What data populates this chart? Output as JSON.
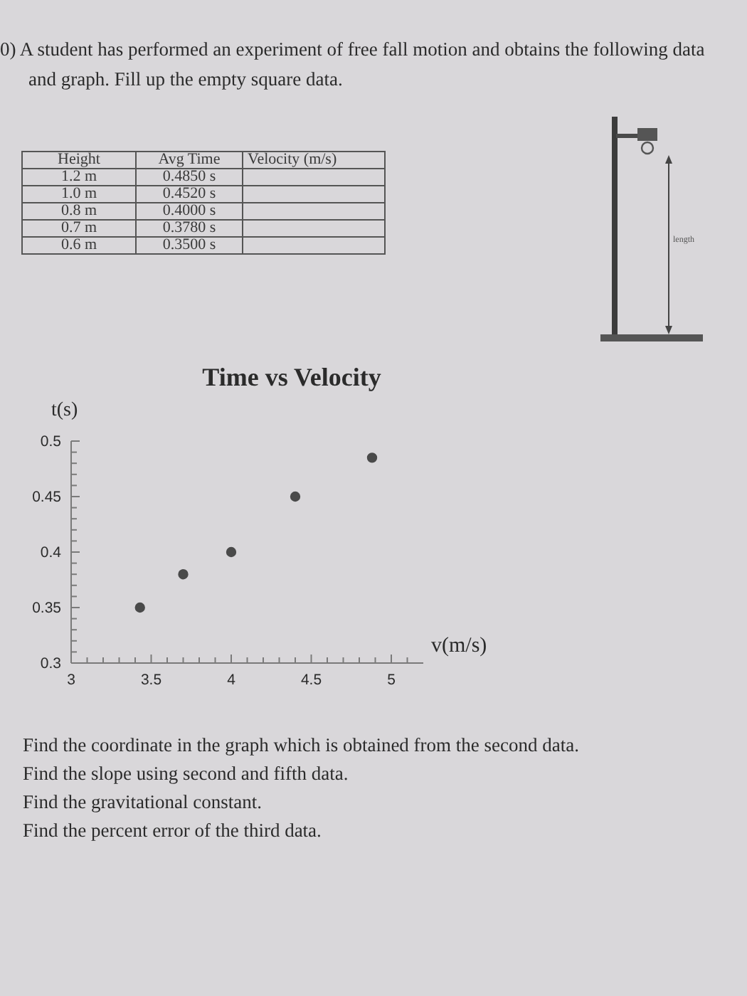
{
  "chart_data": {
    "type": "scatter",
    "title": "Time vs Velocity",
    "xlabel": "v(m/s)",
    "ylabel": "t(s)",
    "x": [
      3.43,
      3.7,
      4,
      4.4,
      4.88
    ],
    "values": [
      0.35,
      0.38,
      0.4,
      0.45,
      0.485
    ],
    "color": "#4a4a4a",
    "marker": "circle",
    "xlim": [
      3,
      5.2
    ],
    "xticks": [
      3,
      {
        "value": 3.1,
        "label": null
      },
      {
        "value": 3.2,
        "label": null
      },
      {
        "value": 3.3,
        "label": null
      },
      {
        "value": 3.4,
        "label": null
      },
      3.5,
      {
        "value": 3.6,
        "label": null
      },
      {
        "value": 3.7,
        "label": null
      },
      {
        "value": 3.8,
        "label": null
      },
      {
        "value": 3.9,
        "label": null
      },
      4,
      {
        "value": 4.1,
        "label": null
      },
      {
        "value": 4.2,
        "label": null
      },
      {
        "value": 4.3,
        "label": null
      },
      {
        "value": 4.4,
        "label": null
      },
      4.5,
      {
        "value": 4.6,
        "label": null
      },
      {
        "value": 4.7,
        "label": null
      },
      {
        "value": 4.8,
        "label": null
      },
      {
        "value": 4.9,
        "label": null
      },
      5,
      {
        "value": 5.1,
        "label": null
      }
    ],
    "ylim": [
      0.3,
      0.5
    ],
    "yticks": [
      0.3,
      {
        "value": 0.31,
        "label": null
      },
      {
        "value": 0.32,
        "label": null
      },
      {
        "value": 0.33,
        "label": null
      },
      {
        "value": 0.34,
        "label": null
      },
      0.35,
      {
        "value": 0.36,
        "label": null
      },
      {
        "value": 0.37,
        "label": null
      },
      {
        "value": 0.38,
        "label": null
      },
      {
        "value": 0.39,
        "label": null
      },
      0.4,
      {
        "value": 0.41,
        "label": null
      },
      {
        "value": 0.42,
        "label": null
      },
      {
        "value": 0.43,
        "label": null
      },
      {
        "value": 0.44,
        "label": null
      },
      0.45,
      {
        "value": 0.46,
        "label": null
      },
      {
        "value": 0.47,
        "label": null
      },
      {
        "value": 0.48,
        "label": null
      },
      {
        "value": 0.49,
        "label": null
      },
      0.5
    ],
    "annotations": [
      "0) A student has performed an experiment of free fall motion and obtains the following data and graph. Fill up the empty square data.",
      "Height",
      "Avg Time",
      "Velocity (m/s)",
      "1.2 m",
      "0.4850 s",
      "1.0 m",
      "0.4520 s",
      "0.8 m",
      "0.4000 s",
      "0.7 m",
      "0.3780 s",
      "0.6 m",
      "0.3500 s",
      "length",
      "Find the coordinate in the graph which is obtained from the second data.",
      "Find the slope using second and fifth data.",
      "Find the gravitational constant.",
      "Find the percent error of the third data."
    ]
  }
}
